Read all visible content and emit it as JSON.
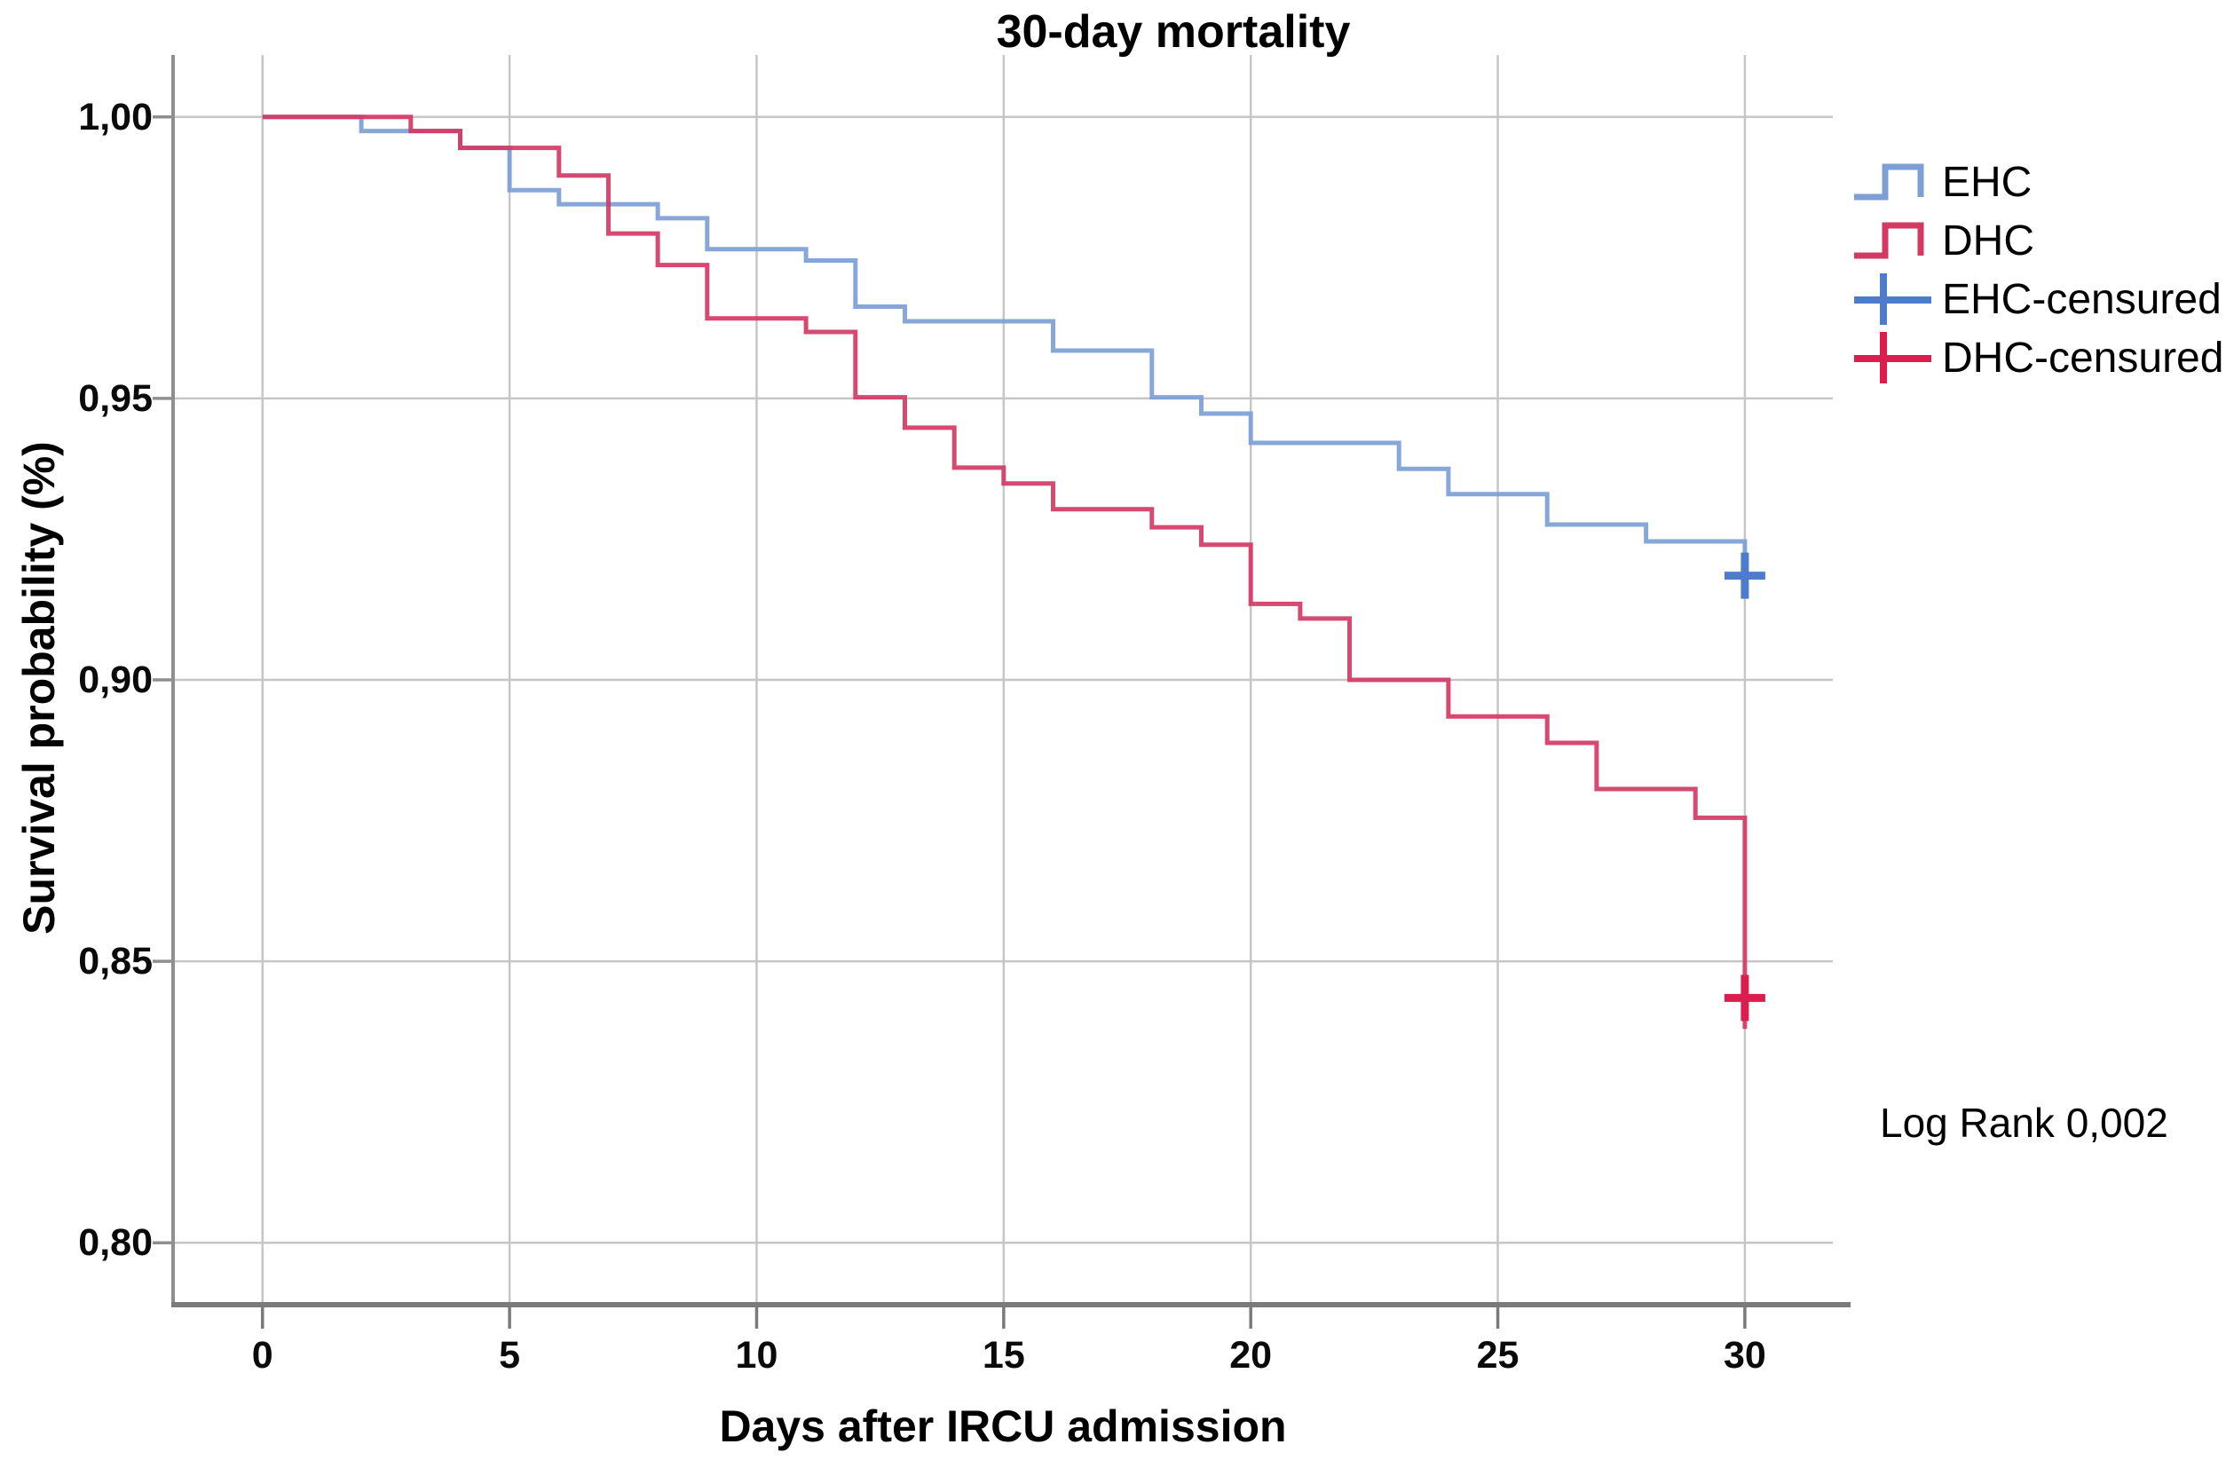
{
  "title": "30-day mortality",
  "legend": {
    "items": [
      {
        "label": "EHC",
        "swatch": "step-line",
        "color": "#7d9fd6"
      },
      {
        "label": "DHC",
        "swatch": "step-line",
        "color": "#d23a64"
      },
      {
        "label": "EHC-censured",
        "swatch": "plus-line",
        "color": "#4f7bcd"
      },
      {
        "label": "DHC-censured",
        "swatch": "plus-line",
        "color": "#dc1e4e"
      }
    ]
  },
  "annotation": {
    "log_rank": "Log Rank 0,002"
  },
  "chart_data": {
    "type": "line",
    "subtype": "kaplan-meier-step",
    "title": "30-day mortality",
    "xlabel": "Days after IRCU admission",
    "ylabel": "Survival probability (%)",
    "x_ticks": {
      "values": [
        0,
        5,
        10,
        15,
        20,
        25,
        30
      ],
      "labels": [
        "0",
        "5",
        "10",
        "15",
        "20",
        "25",
        "30"
      ]
    },
    "y_ticks": {
      "values": [
        0.8,
        0.85,
        0.9,
        0.95,
        1.0
      ],
      "labels": [
        "0,80",
        "0,85",
        "0,90",
        "0,95",
        "1,00"
      ]
    },
    "xlim": [
      -1.81,
      31.78
    ],
    "ylim": [
      0.789,
      1.011
    ],
    "grid": true,
    "legend_position": "right",
    "decimal_separator": ",",
    "grid_color": "#c6c6c6",
    "axis_color": "#7a7a7a",
    "series": [
      {
        "name": "EHC",
        "color": "#7d9fd6",
        "censor_color": "#4f7bcd",
        "steps": [
          [
            0,
            1.0
          ],
          [
            2,
            0.9975
          ],
          [
            4,
            0.9945
          ],
          [
            5,
            0.987
          ],
          [
            6,
            0.9845
          ],
          [
            8,
            0.982
          ],
          [
            9,
            0.9765
          ],
          [
            11,
            0.9745
          ],
          [
            12,
            0.9663
          ],
          [
            13,
            0.9637
          ],
          [
            16,
            0.9585
          ],
          [
            18,
            0.9502
          ],
          [
            19,
            0.9473
          ],
          [
            20,
            0.9421
          ],
          [
            23,
            0.9375
          ],
          [
            24,
            0.933
          ],
          [
            26,
            0.9276
          ],
          [
            28,
            0.9246
          ],
          [
            30,
            0.9205
          ]
        ],
        "censored": [
          [
            30,
            0.9185
          ]
        ]
      },
      {
        "name": "DHC",
        "color": "#d23a64",
        "censor_color": "#dc1e4e",
        "steps": [
          [
            0,
            1.0
          ],
          [
            3,
            0.9975
          ],
          [
            4,
            0.9945
          ],
          [
            6,
            0.9896
          ],
          [
            7,
            0.9793
          ],
          [
            8,
            0.9737
          ],
          [
            9,
            0.9642
          ],
          [
            11,
            0.9618
          ],
          [
            12,
            0.9502
          ],
          [
            13,
            0.9448
          ],
          [
            14,
            0.9377
          ],
          [
            15,
            0.9349
          ],
          [
            16,
            0.9303
          ],
          [
            18,
            0.9271
          ],
          [
            19,
            0.924
          ],
          [
            20,
            0.9135
          ],
          [
            21,
            0.9109
          ],
          [
            22,
            0.9
          ],
          [
            24,
            0.8935
          ],
          [
            26,
            0.8888
          ],
          [
            27,
            0.8806
          ],
          [
            29,
            0.8755
          ],
          [
            30,
            0.838
          ]
        ],
        "censored": [
          [
            30,
            0.8435
          ]
        ]
      }
    ],
    "log_rank": "0,002"
  }
}
